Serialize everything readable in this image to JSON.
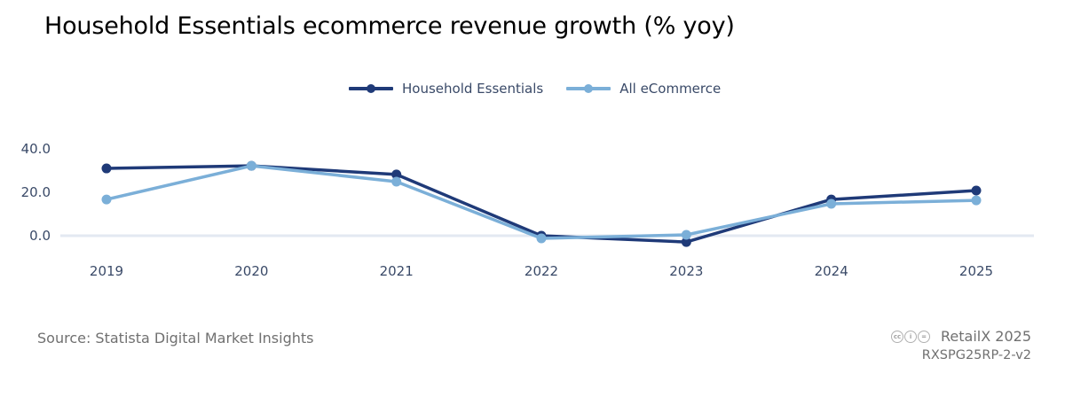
{
  "title": "Household Essentials ecommerce revenue growth (% yoy)",
  "legend": [
    {
      "label": "Household Essentials",
      "color": "#1f3a78"
    },
    {
      "label": "All eCommerce",
      "color": "#7bafd8"
    }
  ],
  "footer": {
    "source": "Source: Statista Digital Market Insights",
    "brand": "RetailX 2025",
    "code": "RXSPG25RP-2-v2",
    "license_icons": [
      "cc-icon",
      "by-icon",
      "nd-icon"
    ]
  },
  "chart_data": {
    "type": "line",
    "title": "Household Essentials ecommerce revenue growth (% yoy)",
    "xlabel": "",
    "ylabel": "",
    "categories": [
      "2019",
      "2020",
      "2021",
      "2022",
      "2023",
      "2024",
      "2025"
    ],
    "yticks": [
      0,
      20,
      40
    ],
    "ytick_labels": [
      "0.0",
      "20.0",
      "40.0"
    ],
    "ylim": [
      -5,
      40
    ],
    "grid": "zero-line only",
    "legend_position": "top-center",
    "series": [
      {
        "name": "Household Essentials",
        "color": "#1f3a78",
        "values": [
          31.0,
          32.2,
          28.2,
          0.0,
          -2.9,
          16.7,
          20.8
        ]
      },
      {
        "name": "All eCommerce",
        "color": "#7bafd8",
        "values": [
          16.7,
          32.2,
          24.9,
          -1.2,
          0.4,
          14.7,
          16.3
        ]
      }
    ]
  }
}
